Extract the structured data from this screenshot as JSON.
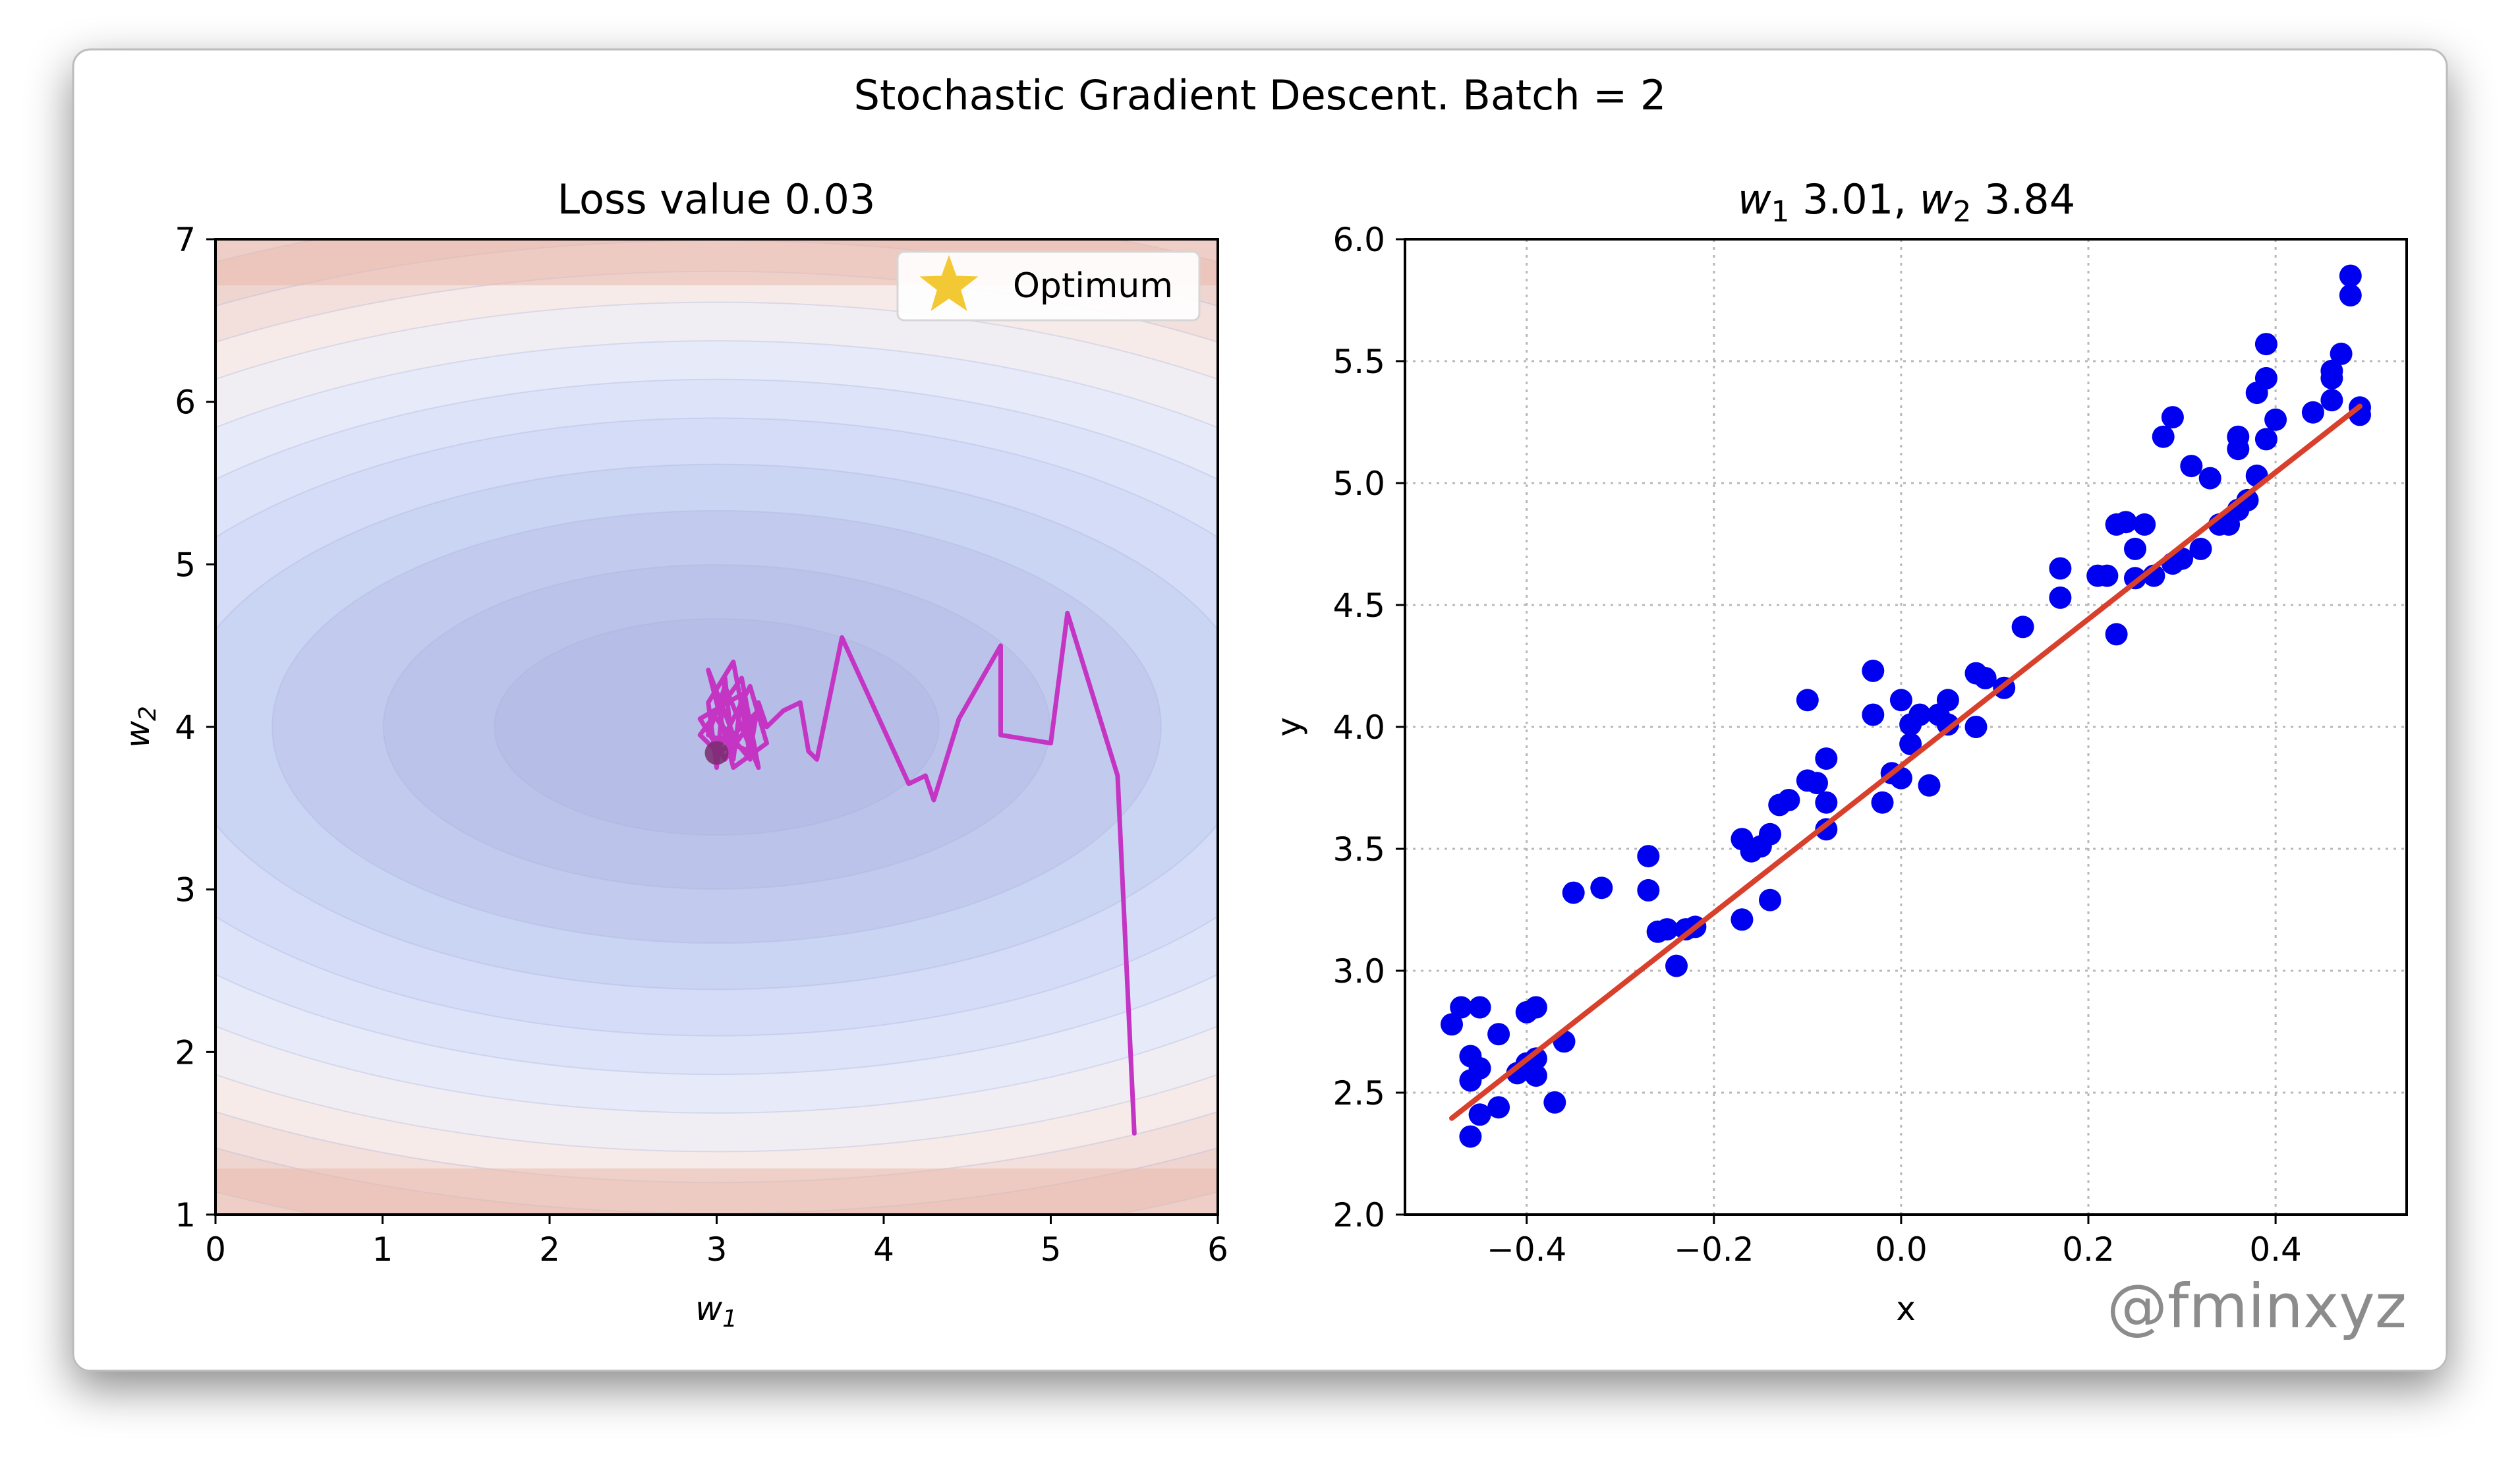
{
  "figure": {
    "title": "Stochastic Gradient Descent. Batch = 2",
    "watermark": "@fminxyz"
  },
  "chart_data": [
    {
      "type": "contour",
      "title": "Loss value 0.03",
      "xlabel": "w1",
      "ylabel": "w2",
      "xlim": [
        0,
        6
      ],
      "ylim": [
        1,
        7
      ],
      "xticks": [
        "0",
        "1",
        "2",
        "3",
        "4",
        "5",
        "6"
      ],
      "yticks": [
        "1",
        "2",
        "3",
        "4",
        "5",
        "6",
        "7"
      ],
      "optimum": {
        "w1": 3.0,
        "w2": 4.0
      },
      "current": {
        "w1": 3.0,
        "w2": 3.84
      },
      "legend": {
        "label": "Optimum",
        "placement": "top-right"
      },
      "path": [
        [
          5.5,
          1.5
        ],
        [
          5.4,
          3.7
        ],
        [
          5.1,
          4.7
        ],
        [
          5.0,
          3.9
        ],
        [
          4.7,
          3.95
        ],
        [
          4.7,
          4.5
        ],
        [
          4.45,
          4.05
        ],
        [
          4.3,
          3.55
        ],
        [
          4.25,
          3.7
        ],
        [
          4.15,
          3.65
        ],
        [
          3.75,
          4.55
        ],
        [
          3.6,
          3.8
        ],
        [
          3.55,
          3.85
        ],
        [
          3.5,
          4.15
        ],
        [
          3.4,
          4.1
        ],
        [
          3.3,
          4.0
        ],
        [
          3.25,
          4.15
        ],
        [
          3.2,
          3.85
        ],
        [
          3.15,
          4.2
        ],
        [
          3.1,
          3.8
        ],
        [
          3.05,
          4.3
        ],
        [
          3.0,
          3.75
        ],
        [
          2.95,
          4.15
        ],
        [
          3.1,
          4.4
        ],
        [
          3.2,
          3.85
        ],
        [
          2.95,
          3.95
        ],
        [
          3.05,
          4.25
        ],
        [
          3.25,
          3.75
        ],
        [
          3.15,
          4.3
        ],
        [
          2.9,
          3.95
        ],
        [
          3.0,
          3.85
        ],
        [
          3.2,
          4.25
        ],
        [
          3.3,
          3.9
        ],
        [
          3.1,
          3.75
        ],
        [
          2.95,
          4.35
        ],
        [
          3.1,
          3.95
        ],
        [
          3.25,
          4.1
        ],
        [
          3.05,
          3.8
        ],
        [
          2.9,
          4.05
        ],
        [
          3.15,
          4.2
        ],
        [
          3.2,
          3.8
        ],
        [
          3.0,
          4.05
        ],
        [
          3.1,
          3.9
        ],
        [
          3.0,
          3.84
        ]
      ]
    },
    {
      "type": "scatter",
      "title": "w1 3.01, w2 3.84",
      "xlabel": "x",
      "ylabel": "y",
      "xlim": [
        -0.53,
        0.54
      ],
      "ylim": [
        2.0,
        6.0
      ],
      "xticks": [
        -0.4,
        -0.2,
        0.0,
        0.2,
        0.4
      ],
      "xtick_labels": [
        "−0.4",
        "−0.2",
        "0.0",
        "0.2",
        "0.4"
      ],
      "yticks": [
        2.0,
        2.5,
        3.0,
        3.5,
        4.0,
        4.5,
        5.0,
        5.5,
        6.0
      ],
      "ytick_labels": [
        "2.0",
        "2.5",
        "3.0",
        "3.5",
        "4.0",
        "4.5",
        "5.0",
        "5.5",
        "6.0"
      ],
      "grid": true,
      "points": [
        [
          -0.48,
          2.78
        ],
        [
          -0.47,
          2.85
        ],
        [
          -0.46,
          2.65
        ],
        [
          -0.46,
          2.55
        ],
        [
          -0.45,
          2.6
        ],
        [
          -0.45,
          2.85
        ],
        [
          -0.46,
          2.32
        ],
        [
          -0.45,
          2.41
        ],
        [
          -0.43,
          2.44
        ],
        [
          -0.43,
          2.74
        ],
        [
          -0.41,
          2.58
        ],
        [
          -0.4,
          2.83
        ],
        [
          -0.39,
          2.85
        ],
        [
          -0.4,
          2.62
        ],
        [
          -0.39,
          2.64
        ],
        [
          -0.39,
          2.57
        ],
        [
          -0.37,
          2.46
        ],
        [
          -0.36,
          2.71
        ],
        [
          -0.35,
          3.32
        ],
        [
          -0.32,
          3.34
        ],
        [
          -0.27,
          3.47
        ],
        [
          -0.27,
          3.33
        ],
        [
          -0.26,
          3.16
        ],
        [
          -0.25,
          3.17
        ],
        [
          -0.24,
          3.02
        ],
        [
          -0.23,
          3.17
        ],
        [
          -0.22,
          3.18
        ],
        [
          -0.17,
          3.21
        ],
        [
          -0.17,
          3.54
        ],
        [
          -0.16,
          3.49
        ],
        [
          -0.15,
          3.51
        ],
        [
          -0.14,
          3.56
        ],
        [
          -0.14,
          3.29
        ],
        [
          -0.13,
          3.68
        ],
        [
          -0.12,
          3.7
        ],
        [
          -0.1,
          3.78
        ],
        [
          -0.1,
          4.11
        ],
        [
          -0.09,
          3.77
        ],
        [
          -0.08,
          3.87
        ],
        [
          -0.08,
          3.69
        ],
        [
          -0.08,
          3.58
        ],
        [
          -0.03,
          4.23
        ],
        [
          -0.03,
          4.05
        ],
        [
          -0.02,
          3.69
        ],
        [
          -0.01,
          3.81
        ],
        [
          0.0,
          3.79
        ],
        [
          0.0,
          4.11
        ],
        [
          0.01,
          4.01
        ],
        [
          0.01,
          3.93
        ],
        [
          0.02,
          4.05
        ],
        [
          0.03,
          3.76
        ],
        [
          0.04,
          4.05
        ],
        [
          0.05,
          4.11
        ],
        [
          0.05,
          4.01
        ],
        [
          0.08,
          4.22
        ],
        [
          0.08,
          4.0
        ],
        [
          0.09,
          4.2
        ],
        [
          0.11,
          4.16
        ],
        [
          0.13,
          4.41
        ],
        [
          0.17,
          4.65
        ],
        [
          0.17,
          4.53
        ],
        [
          0.21,
          4.62
        ],
        [
          0.22,
          4.62
        ],
        [
          0.23,
          4.38
        ],
        [
          0.23,
          4.83
        ],
        [
          0.24,
          4.84
        ],
        [
          0.25,
          4.73
        ],
        [
          0.25,
          4.61
        ],
        [
          0.26,
          4.83
        ],
        [
          0.27,
          4.62
        ],
        [
          0.28,
          5.19
        ],
        [
          0.29,
          5.27
        ],
        [
          0.29,
          4.67
        ],
        [
          0.3,
          4.69
        ],
        [
          0.31,
          5.07
        ],
        [
          0.32,
          4.73
        ],
        [
          0.33,
          5.02
        ],
        [
          0.34,
          4.83
        ],
        [
          0.35,
          4.83
        ],
        [
          0.36,
          5.19
        ],
        [
          0.36,
          5.14
        ],
        [
          0.36,
          4.89
        ],
        [
          0.37,
          4.93
        ],
        [
          0.38,
          5.37
        ],
        [
          0.38,
          5.03
        ],
        [
          0.39,
          5.43
        ],
        [
          0.39,
          5.57
        ],
        [
          0.39,
          5.18
        ],
        [
          0.4,
          5.26
        ],
        [
          0.44,
          5.29
        ],
        [
          0.46,
          5.34
        ],
        [
          0.46,
          5.43
        ],
        [
          0.46,
          5.46
        ],
        [
          0.47,
          5.53
        ],
        [
          0.48,
          5.77
        ],
        [
          0.48,
          5.85
        ],
        [
          0.49,
          5.28
        ],
        [
          0.49,
          5.31
        ]
      ],
      "fit_line": {
        "w1": 3.01,
        "w2": 3.84,
        "x_range": [
          -0.48,
          0.49
        ]
      }
    }
  ]
}
